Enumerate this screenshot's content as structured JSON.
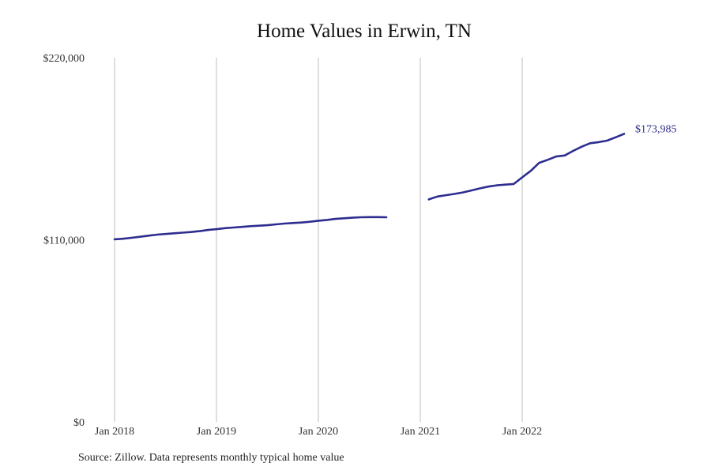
{
  "chart_data": {
    "type": "line",
    "title": "Home Values in Erwin, TN",
    "xlabel": "",
    "ylabel": "",
    "x_range": [
      "2018-01",
      "2023-01"
    ],
    "ylim": [
      0,
      220000
    ],
    "y_ticks": [
      0,
      110000,
      220000
    ],
    "y_tick_labels": [
      "$0",
      "$110,000",
      "$220,000"
    ],
    "x_ticks": [
      "2018-01",
      "2019-01",
      "2020-01",
      "2021-01",
      "2022-01"
    ],
    "x_tick_labels": [
      "Jan 2018",
      "Jan 2019",
      "Jan 2020",
      "Jan 2021",
      "Jan 2022"
    ],
    "grid": "vertical",
    "line_color": "#2e2d8f",
    "gridline_color": "#bfbfbf",
    "end_label": "$173,985",
    "series": [
      {
        "segments": [
          [
            [
              "2018-01",
              110300
            ],
            [
              "2018-02",
              110600
            ],
            [
              "2018-03",
              111200
            ],
            [
              "2018-04",
              111800
            ],
            [
              "2018-05",
              112500
            ],
            [
              "2018-06",
              113100
            ],
            [
              "2018-07",
              113500
            ],
            [
              "2018-08",
              113900
            ],
            [
              "2018-09",
              114300
            ],
            [
              "2018-10",
              114700
            ],
            [
              "2018-11",
              115200
            ],
            [
              "2018-12",
              115900
            ],
            [
              "2019-01",
              116400
            ],
            [
              "2019-02",
              117000
            ],
            [
              "2019-03",
              117400
            ],
            [
              "2019-04",
              117800
            ],
            [
              "2019-05",
              118200
            ],
            [
              "2019-06",
              118500
            ],
            [
              "2019-07",
              118800
            ],
            [
              "2019-08",
              119300
            ],
            [
              "2019-09",
              119800
            ],
            [
              "2019-10",
              120100
            ],
            [
              "2019-11",
              120400
            ],
            [
              "2019-12",
              120900
            ],
            [
              "2020-01",
              121500
            ],
            [
              "2020-02",
              122000
            ],
            [
              "2020-03",
              122600
            ],
            [
              "2020-04",
              123000
            ],
            [
              "2020-05",
              123300
            ],
            [
              "2020-06",
              123600
            ],
            [
              "2020-07",
              123700
            ],
            [
              "2020-08",
              123700
            ],
            [
              "2020-09",
              123600
            ]
          ],
          [
            [
              "2021-02",
              134400
            ],
            [
              "2021-03",
              136100
            ],
            [
              "2021-04",
              136900
            ],
            [
              "2021-05",
              137700
            ],
            [
              "2021-06",
              138600
            ],
            [
              "2021-07",
              139800
            ],
            [
              "2021-08",
              141000
            ],
            [
              "2021-09",
              142100
            ],
            [
              "2021-10",
              142900
            ],
            [
              "2021-11",
              143300
            ],
            [
              "2021-12",
              143700
            ],
            [
              "2022-01",
              147700
            ],
            [
              "2022-02",
              151600
            ],
            [
              "2022-03",
              156500
            ],
            [
              "2022-04",
              158300
            ],
            [
              "2022-05",
              160300
            ],
            [
              "2022-06",
              160900
            ],
            [
              "2022-07",
              163700
            ],
            [
              "2022-08",
              166200
            ],
            [
              "2022-09",
              168300
            ],
            [
              "2022-10",
              169000
            ],
            [
              "2022-11",
              169900
            ],
            [
              "2022-12",
              171900
            ],
            [
              "2023-01",
              173985
            ]
          ]
        ]
      }
    ]
  },
  "footer": {
    "source": "Source: Zillow. Data represents monthly typical home value"
  }
}
